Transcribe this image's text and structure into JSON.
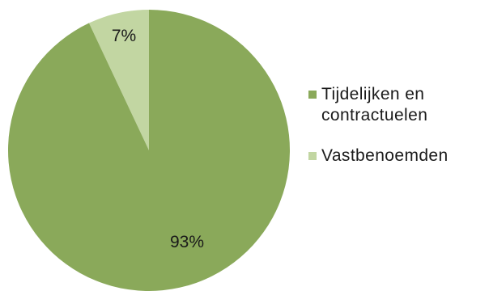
{
  "chart_data": {
    "type": "pie",
    "title": "",
    "categories": [
      "Tijdelijken en contractuelen",
      "Vastbenoemden"
    ],
    "values": [
      93,
      7
    ],
    "data_labels": [
      "93%",
      "7%"
    ],
    "colors": [
      "#8aa95a",
      "#c2d6a2"
    ],
    "legend_position": "right",
    "start_angle": "12 o'clock",
    "direction": "counter-clockwise"
  },
  "legend": {
    "items": [
      {
        "label": "Tijdelijken en contractuelen",
        "line1": "Tijdelijken en",
        "line2": "contractuelen",
        "color": "#8aa95a"
      },
      {
        "label": "Vastbenoemden",
        "color": "#c2d6a2"
      }
    ]
  }
}
